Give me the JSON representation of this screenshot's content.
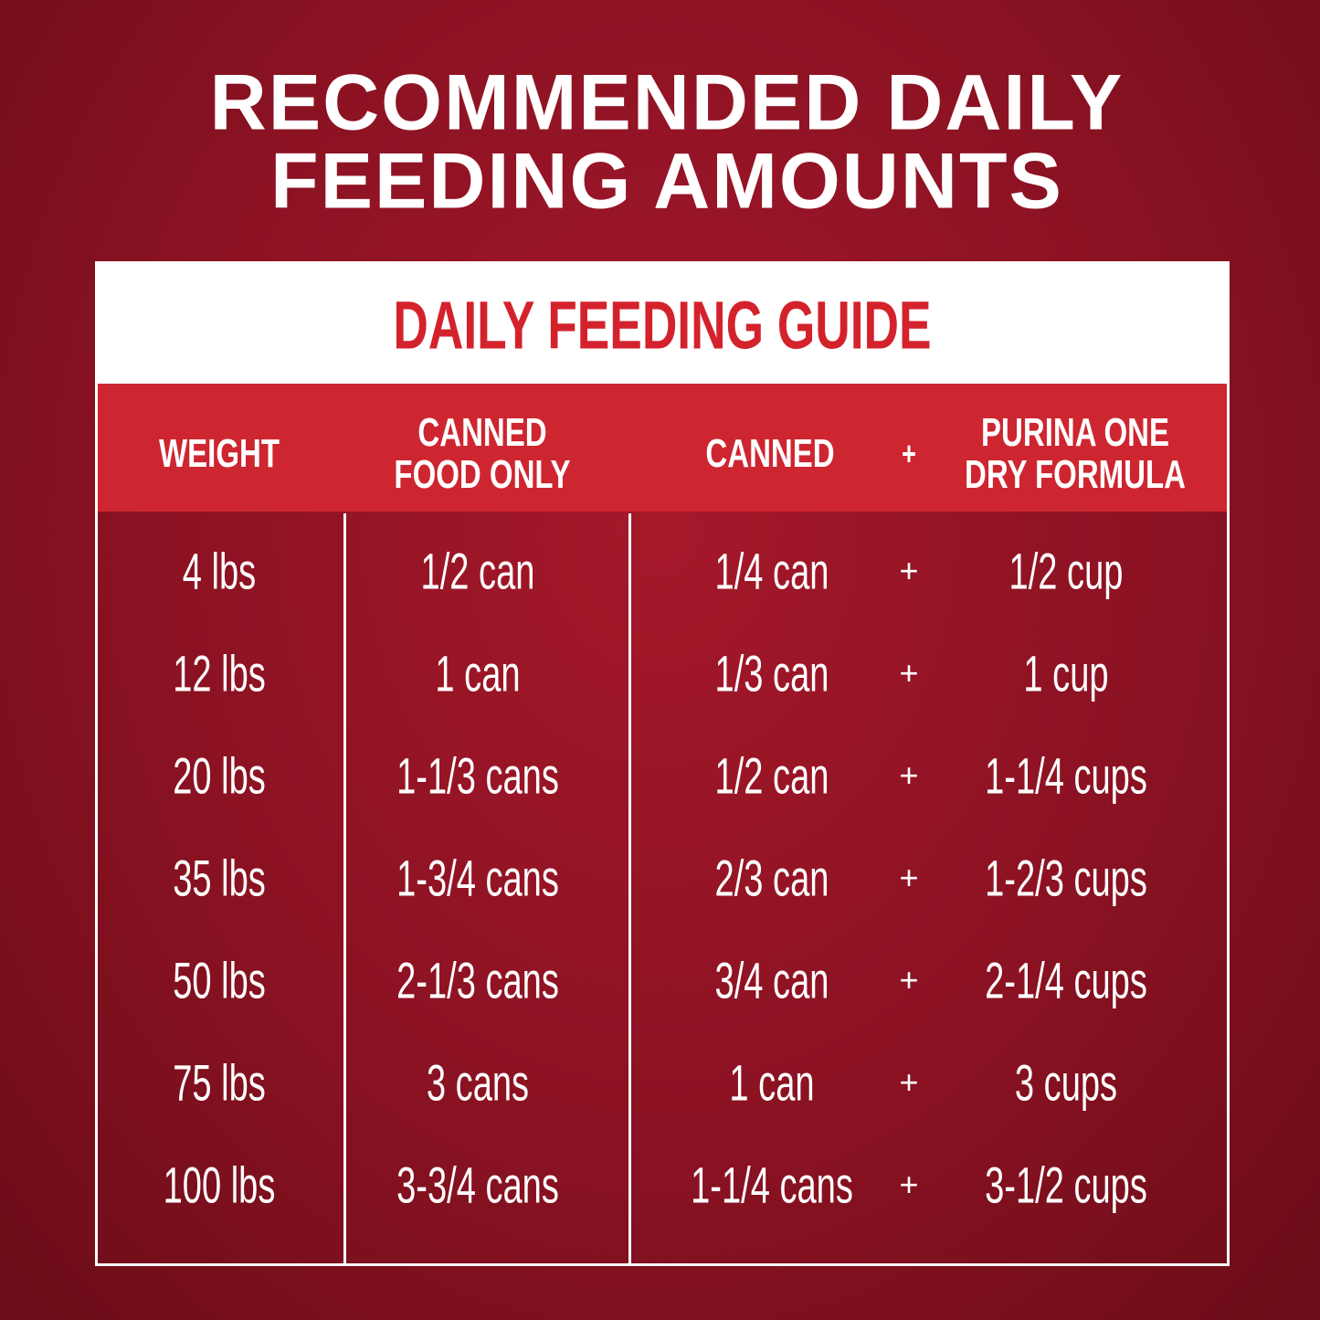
{
  "title": [
    "RECOMMENDED DAILY",
    "FEEDING AMOUNTS"
  ],
  "table": {
    "title": "DAILY FEEDING GUIDE",
    "header": [
      [
        "WEIGHT"
      ],
      [
        "CANNED",
        "FOOD ONLY"
      ],
      [
        "CANNED"
      ],
      [
        "+"
      ],
      [
        "PURINA ONE",
        "DRY FORMULA"
      ]
    ],
    "rows": [
      [
        "4 lbs",
        "1/2 can",
        "1/4 can",
        "+",
        "1/2 cup"
      ],
      [
        "12 lbs",
        "1 can",
        "1/3 can",
        "+",
        "1 cup"
      ],
      [
        "20 lbs",
        "1-1/3 cans",
        "1/2 can",
        "+",
        "1-1/4 cups"
      ],
      [
        "35 lbs",
        "1-3/4 cans",
        "2/3 can",
        "+",
        "1-2/3 cups"
      ],
      [
        "50 lbs",
        "2-1/3 cans",
        "3/4 can",
        "+",
        "2-1/4 cups"
      ],
      [
        "75 lbs",
        "3 cans",
        "1 can",
        "+",
        "3 cups"
      ],
      [
        "100 lbs",
        "3-3/4 cans",
        "1-1/4 cans",
        "+",
        "3-1/2 cups"
      ]
    ]
  }
}
